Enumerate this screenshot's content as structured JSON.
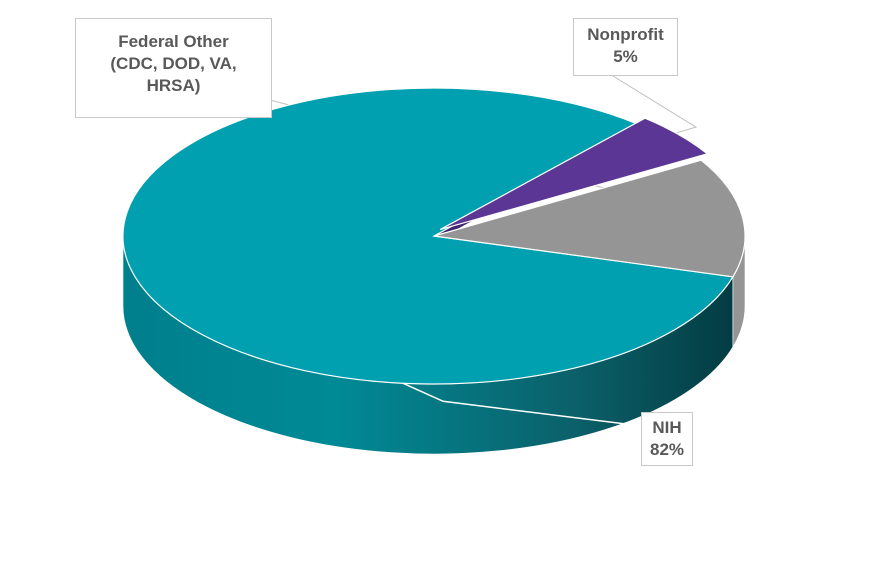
{
  "chart_data": {
    "type": "pie",
    "style": "3d",
    "title": "",
    "slices": [
      {
        "key": "nih",
        "label": "NIH",
        "value": 82,
        "value_label": "82%",
        "color": "#00A0B0"
      },
      {
        "key": "nonprofit",
        "label": "Nonprofit",
        "value": 5,
        "value_label": "5%",
        "color": "#5B3694"
      },
      {
        "key": "federal",
        "label_lines": [
          "Federal Other",
          "(CDC, DOD, VA,",
          "HRSA)"
        ],
        "value": 13,
        "value_label": "",
        "color": "#959595"
      }
    ],
    "legend": "none"
  }
}
